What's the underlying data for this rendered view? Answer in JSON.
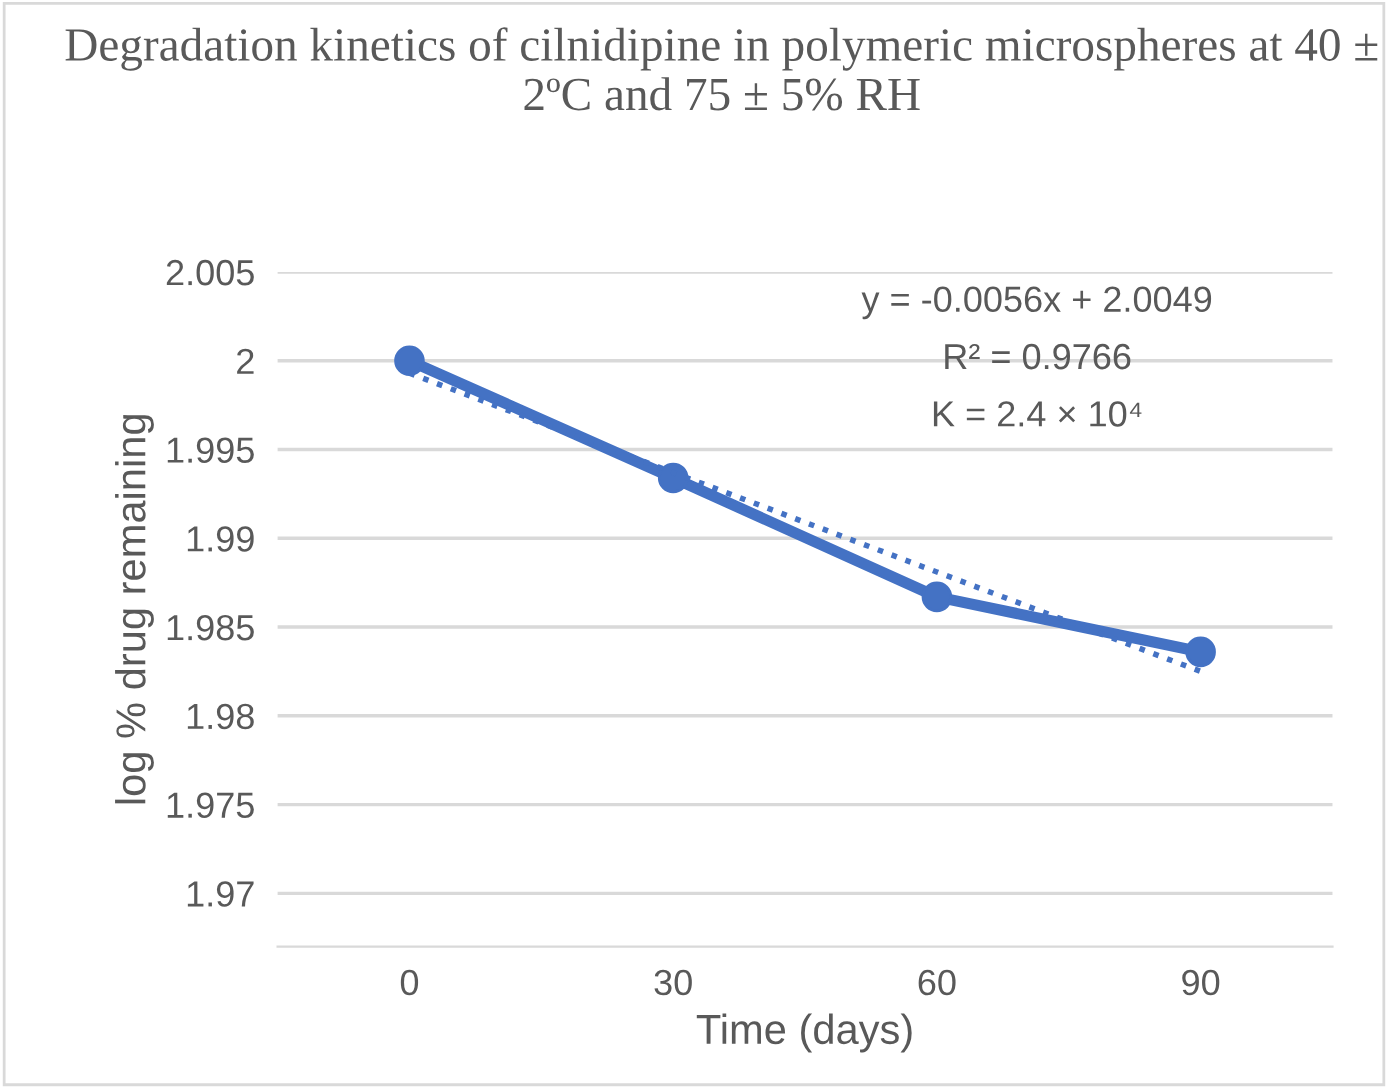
{
  "chart_data": {
    "type": "line",
    "title": "Degradation kinetics of cilnidipine in polymeric microspheres at 40 ± 2ºC and 75 ± 5% RH",
    "xlabel": "Time (days)",
    "ylabel": "log % drug remaining",
    "categories": [
      "0",
      "30",
      "60",
      "90"
    ],
    "series": [
      {
        "color": "#4472c4",
        "values": [
          2.0,
          1.9934,
          1.9867,
          1.9836
        ],
        "marker": "circle",
        "line_style": "solid"
      },
      {
        "type": "line",
        "color": "#4472c4",
        "values": [
          1.9993,
          1.9937,
          1.9881,
          1.9825
        ],
        "marker": "none",
        "line_style": "dotted"
      }
    ],
    "annotations": [
      "y = -0.0056x + 2.0049",
      "R² = 0.9766",
      "K = 2.4 × 10⁴"
    ],
    "ylim": [
      1.967,
      2.005
    ],
    "yticks": [
      {
        "value": 1.97,
        "label": "1.97"
      },
      {
        "value": 1.975,
        "label": "1.975"
      },
      {
        "value": 1.98,
        "label": "1.98"
      },
      {
        "value": 1.985,
        "label": "1.985"
      },
      {
        "value": 1.99,
        "label": "1.99"
      },
      {
        "value": 1.995,
        "label": "1.995"
      },
      {
        "value": 2,
        "label": "2"
      },
      {
        "value": 2.005,
        "label": "2.005"
      }
    ],
    "grid": "y",
    "legend": false
  }
}
